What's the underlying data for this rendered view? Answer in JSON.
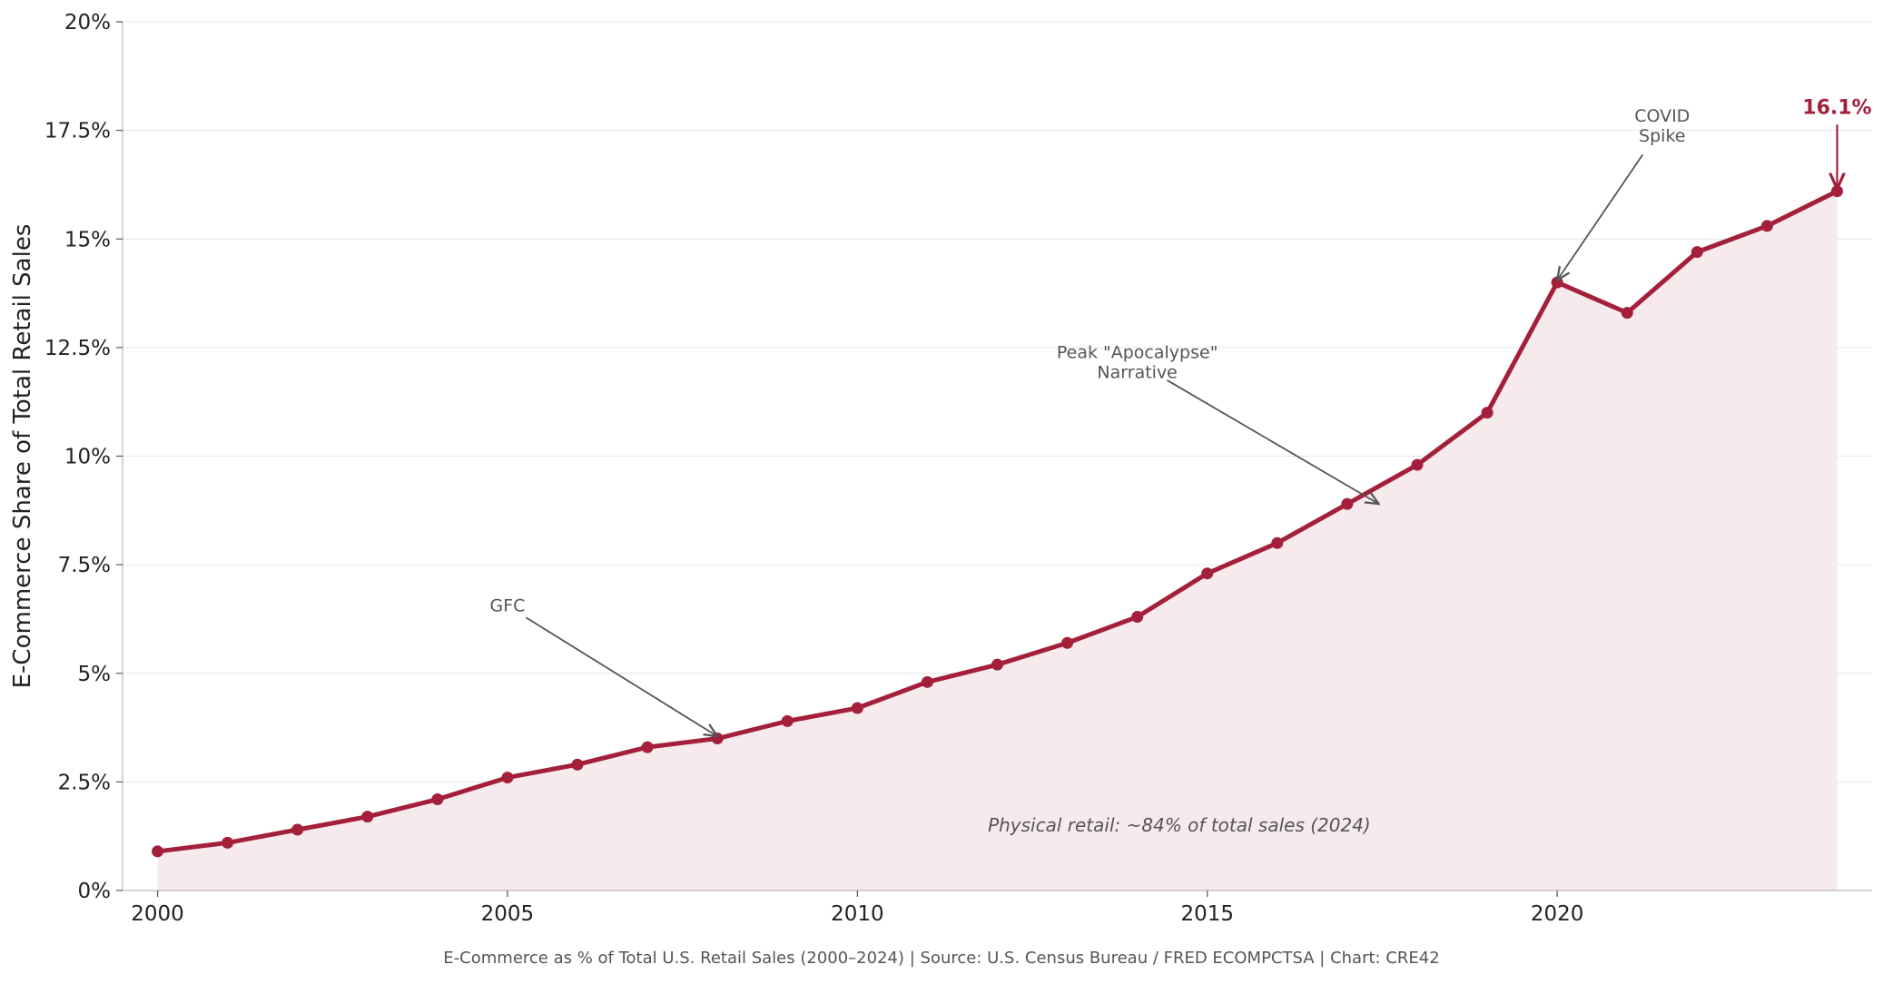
{
  "chart_data": {
    "type": "area",
    "title": "",
    "xlabel": "",
    "ylabel": "E-Commerce Share of Total Retail Sales",
    "x": [
      2000,
      2001,
      2002,
      2003,
      2004,
      2005,
      2006,
      2007,
      2008,
      2009,
      2010,
      2011,
      2012,
      2013,
      2014,
      2015,
      2016,
      2017,
      2018,
      2019,
      2020,
      2021,
      2022,
      2023,
      2024
    ],
    "series": [
      {
        "values": [
          0.9,
          1.1,
          1.4,
          1.7,
          2.1,
          2.6,
          2.9,
          3.3,
          3.5,
          3.9,
          4.2,
          4.8,
          5.2,
          5.7,
          6.3,
          7.3,
          8.0,
          8.9,
          9.8,
          11.0,
          14.0,
          13.3,
          14.7,
          15.3,
          16.1
        ],
        "color": "#a31f3a"
      }
    ],
    "xlim": [
      1999.5,
      2024.5
    ],
    "ylim": [
      0,
      20
    ],
    "xticks": [
      2000,
      2005,
      2010,
      2015,
      2020
    ],
    "xtick_labels": [
      "2000",
      "2005",
      "2010",
      "2015",
      "2020"
    ],
    "yticks": [
      0,
      2.5,
      5,
      7.5,
      10,
      12.5,
      15,
      17.5,
      20
    ],
    "ytick_labels": [
      "0%",
      "2.5%",
      "5%",
      "7.5%",
      "10%",
      "12.5%",
      "15%",
      "17.5%",
      "20%"
    ],
    "grid": "horizontal",
    "fill_color": "#f6eaed",
    "annotations": [
      {
        "lines": [
          "GFC"
        ],
        "text_at": [
          2005.0,
          6.55
        ],
        "arrow_to": [
          2008.0,
          3.55
        ]
      },
      {
        "lines": [
          "Peak \"Apocalypse\"",
          "Narrative"
        ],
        "text_at": [
          2014.0,
          12.15
        ],
        "arrow_to": [
          2017.45,
          8.9
        ]
      },
      {
        "lines": [
          "COVID",
          "Spike"
        ],
        "text_at": [
          2021.5,
          17.6
        ],
        "arrow_to": [
          2020.0,
          14.05
        ]
      }
    ],
    "last_value_label": {
      "text": "16.1%",
      "at": [
        2024.0,
        18.05
      ],
      "arrow_to": [
        2024.0,
        16.15
      ]
    },
    "note": {
      "text": "Physical retail: ~84% of total sales (2024)",
      "at": [
        2014.6,
        1.5
      ]
    },
    "footer": "E-Commerce as % of Total U.S. Retail Sales (2000–2024) | Source: U.S. Census Bureau / FRED ECOMPCTSA | Chart: CRE42"
  }
}
